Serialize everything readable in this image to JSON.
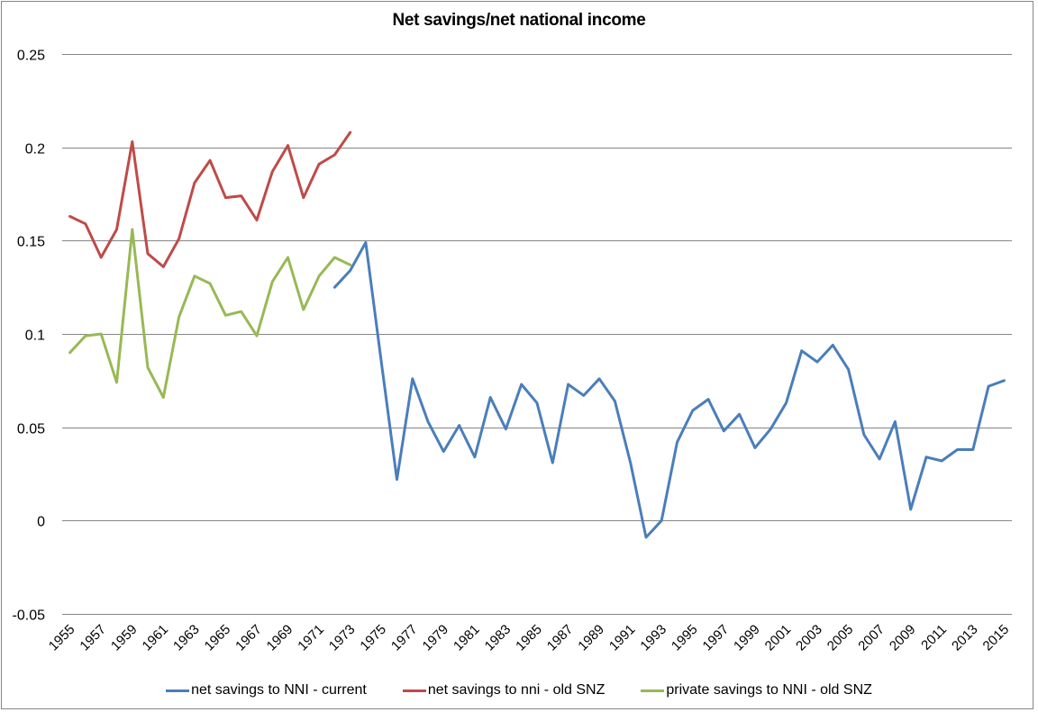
{
  "chart_data": {
    "type": "line",
    "title": "Net savings/net national income",
    "xlabel": "",
    "ylabel": "",
    "ylim": [
      -0.05,
      0.25
    ],
    "yticks": [
      "0.25",
      "0.2",
      "0.15",
      "0.1",
      "0.05",
      "0",
      "-0.05"
    ],
    "ytick_values": [
      0.25,
      0.2,
      0.15,
      0.1,
      0.05,
      0,
      -0.05
    ],
    "x": [
      1955,
      1956,
      1957,
      1958,
      1959,
      1960,
      1961,
      1962,
      1963,
      1964,
      1965,
      1966,
      1967,
      1968,
      1969,
      1970,
      1971,
      1972,
      1973,
      1974,
      1975,
      1976,
      1977,
      1978,
      1979,
      1980,
      1981,
      1982,
      1983,
      1984,
      1985,
      1986,
      1987,
      1988,
      1989,
      1990,
      1991,
      1992,
      1993,
      1994,
      1995,
      1996,
      1997,
      1998,
      1999,
      2000,
      2001,
      2002,
      2003,
      2004,
      2005,
      2006,
      2007,
      2008,
      2009,
      2010,
      2011,
      2012,
      2013,
      2014,
      2015
    ],
    "xtick_labels": [
      "1955",
      "1957",
      "1959",
      "1961",
      "1963",
      "1965",
      "1967",
      "1969",
      "1971",
      "1973",
      "1975",
      "1977",
      "1979",
      "1981",
      "1983",
      "1985",
      "1987",
      "1989",
      "1991",
      "1993",
      "1995",
      "1997",
      "1999",
      "2001",
      "2003",
      "2005",
      "2007",
      "2009",
      "2011",
      "2013",
      "2015"
    ],
    "grid": true,
    "legend_position": "bottom",
    "series": [
      {
        "name": "net savings to NNI -  current",
        "color": "#4a7ebb",
        "start_year": 1972,
        "values": [
          0.125,
          0.134,
          0.149,
          0.085,
          0.022,
          0.076,
          0.053,
          0.037,
          0.051,
          0.034,
          0.066,
          0.049,
          0.073,
          0.063,
          0.031,
          0.073,
          0.067,
          0.076,
          0.064,
          0.031,
          -0.009,
          0.0,
          0.042,
          0.059,
          0.065,
          0.048,
          0.057,
          0.039,
          0.049,
          0.063,
          0.091,
          0.085,
          0.094,
          0.081,
          0.046,
          0.033,
          0.053,
          0.006,
          0.034,
          0.032,
          0.038,
          0.038,
          0.072,
          0.075
        ]
      },
      {
        "name": "net savings to nni - old SNZ",
        "color": "#be4b48",
        "start_year": 1955,
        "values": [
          0.163,
          0.159,
          0.141,
          0.156,
          0.203,
          0.143,
          0.136,
          0.151,
          0.181,
          0.193,
          0.173,
          0.174,
          0.161,
          0.187,
          0.201,
          0.173,
          0.191,
          0.196,
          0.208
        ]
      },
      {
        "name": "private savings to NNI -  old SNZ",
        "color": "#98b954",
        "start_year": 1955,
        "values": [
          0.09,
          0.099,
          0.1,
          0.074,
          0.156,
          0.082,
          0.066,
          0.109,
          0.131,
          0.127,
          0.11,
          0.112,
          0.099,
          0.128,
          0.141,
          0.113,
          0.131,
          0.141,
          0.137
        ]
      }
    ]
  },
  "legend": {
    "items": [
      {
        "label": "net savings to NNI -  current",
        "color": "#4a7ebb"
      },
      {
        "label": "net savings to nni - old SNZ",
        "color": "#be4b48"
      },
      {
        "label": "private savings to NNI -  old SNZ",
        "color": "#98b954"
      }
    ]
  }
}
